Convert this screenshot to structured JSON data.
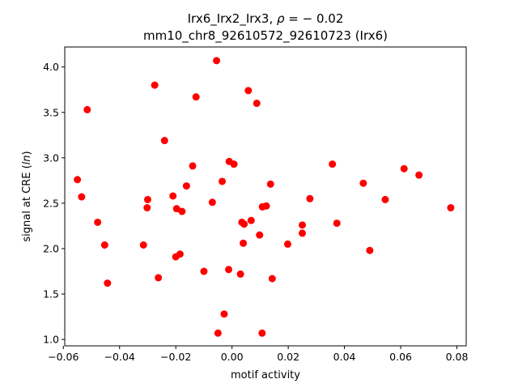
{
  "chart_data": {
    "type": "scatter",
    "title_line1_prefix": "Irx6_Irx2_Irx3, ",
    "title_line1_rho": "ρ",
    "title_line1_suffix": " = − 0.02",
    "title_line2": "mm10_chr8_92610572_92610723 (Irx6)",
    "xlabel": "motif activity",
    "ylabel_prefix": "signal at CRE (",
    "ylabel_italic": "ln",
    "ylabel_suffix": ")",
    "xlim": [
      -0.0595,
      0.0833
    ],
    "ylim": [
      0.93,
      4.22
    ],
    "x_ticks": [
      -0.06,
      -0.04,
      -0.02,
      0.0,
      0.02,
      0.04,
      0.06,
      0.08
    ],
    "x_tick_labels": [
      "−0.06",
      "−0.04",
      "−0.02",
      "0.00",
      "0.02",
      "0.04",
      "0.06",
      "0.08"
    ],
    "y_ticks": [
      1.0,
      1.5,
      2.0,
      2.5,
      3.0,
      3.5,
      4.0
    ],
    "y_tick_labels": [
      "1.0",
      "1.5",
      "2.0",
      "2.5",
      "3.0",
      "3.5",
      "4.0"
    ],
    "grid": false,
    "marker_color": "#ff0000",
    "points": [
      {
        "x": -0.0055,
        "y": 4.07
      },
      {
        "x": -0.0275,
        "y": 3.8
      },
      {
        "x": 0.0058,
        "y": 3.74
      },
      {
        "x": -0.0128,
        "y": 3.67
      },
      {
        "x": 0.0088,
        "y": 3.6
      },
      {
        "x": -0.0515,
        "y": 3.53
      },
      {
        "x": -0.024,
        "y": 3.19
      },
      {
        "x": -0.001,
        "y": 2.96
      },
      {
        "x": 0.0007,
        "y": 2.93
      },
      {
        "x": 0.0357,
        "y": 2.93
      },
      {
        "x": -0.014,
        "y": 2.91
      },
      {
        "x": 0.0612,
        "y": 2.88
      },
      {
        "x": 0.0665,
        "y": 2.81
      },
      {
        "x": -0.055,
        "y": 2.76
      },
      {
        "x": -0.0035,
        "y": 2.74
      },
      {
        "x": 0.0467,
        "y": 2.72
      },
      {
        "x": 0.0137,
        "y": 2.71
      },
      {
        "x": -0.0162,
        "y": 2.69
      },
      {
        "x": -0.021,
        "y": 2.58
      },
      {
        "x": -0.0535,
        "y": 2.57
      },
      {
        "x": 0.0277,
        "y": 2.55
      },
      {
        "x": -0.03,
        "y": 2.54
      },
      {
        "x": 0.0545,
        "y": 2.54
      },
      {
        "x": -0.007,
        "y": 2.51
      },
      {
        "x": 0.0122,
        "y": 2.47
      },
      {
        "x": 0.0108,
        "y": 2.46
      },
      {
        "x": 0.0778,
        "y": 2.45
      },
      {
        "x": -0.0302,
        "y": 2.45
      },
      {
        "x": -0.0197,
        "y": 2.44
      },
      {
        "x": -0.0178,
        "y": 2.41
      },
      {
        "x": 0.0068,
        "y": 2.31
      },
      {
        "x": 0.0035,
        "y": 2.29
      },
      {
        "x": -0.0478,
        "y": 2.29
      },
      {
        "x": 0.0373,
        "y": 2.28
      },
      {
        "x": 0.0043,
        "y": 2.27
      },
      {
        "x": 0.025,
        "y": 2.26
      },
      {
        "x": 0.025,
        "y": 2.17
      },
      {
        "x": 0.0098,
        "y": 2.15
      },
      {
        "x": 0.004,
        "y": 2.06
      },
      {
        "x": 0.0198,
        "y": 2.05
      },
      {
        "x": -0.0453,
        "y": 2.04
      },
      {
        "x": -0.0315,
        "y": 2.04
      },
      {
        "x": 0.049,
        "y": 1.98
      },
      {
        "x": -0.0185,
        "y": 1.94
      },
      {
        "x": -0.02,
        "y": 1.91
      },
      {
        "x": -0.0012,
        "y": 1.77
      },
      {
        "x": -0.01,
        "y": 1.75
      },
      {
        "x": 0.003,
        "y": 1.72
      },
      {
        "x": -0.0262,
        "y": 1.68
      },
      {
        "x": 0.0143,
        "y": 1.67
      },
      {
        "x": -0.0443,
        "y": 1.62
      },
      {
        "x": -0.0028,
        "y": 1.28
      },
      {
        "x": -0.005,
        "y": 1.07
      },
      {
        "x": 0.0107,
        "y": 1.07
      }
    ]
  }
}
